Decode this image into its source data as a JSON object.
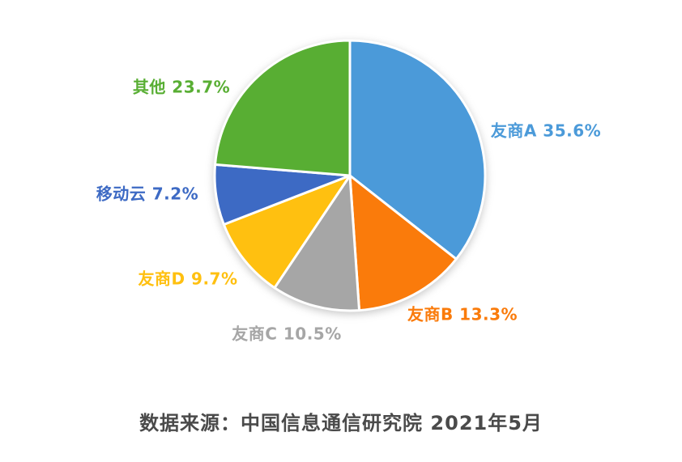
{
  "chart_data": {
    "type": "pie",
    "title": "",
    "start_angle_deg": 0,
    "direction": "clockwise",
    "legend": "none",
    "slices": [
      {
        "name": "友商A",
        "value": 35.6,
        "label": "友商A 35.6%",
        "color": "#4B9AD9"
      },
      {
        "name": "友商B",
        "value": 13.3,
        "label": "友商B 13.3%",
        "color": "#FA7B0B"
      },
      {
        "name": "友商C",
        "value": 10.5,
        "label": "友商C 10.5%",
        "color": "#A6A6A6"
      },
      {
        "name": "友商D",
        "value": 9.7,
        "label": "友商D 9.7%",
        "color": "#FFC010"
      },
      {
        "name": "移动云",
        "value": 7.2,
        "label": "移动云 7.2%",
        "color": "#3D6AC4"
      },
      {
        "name": "其他",
        "value": 23.7,
        "label": "其他 23.7%",
        "color": "#58AE33"
      }
    ],
    "caption": "数据来源：中国信息通信研究院  2021年5月",
    "caption_color": "#4A4A4A",
    "slice_gap_color": "#FFFFFF"
  }
}
